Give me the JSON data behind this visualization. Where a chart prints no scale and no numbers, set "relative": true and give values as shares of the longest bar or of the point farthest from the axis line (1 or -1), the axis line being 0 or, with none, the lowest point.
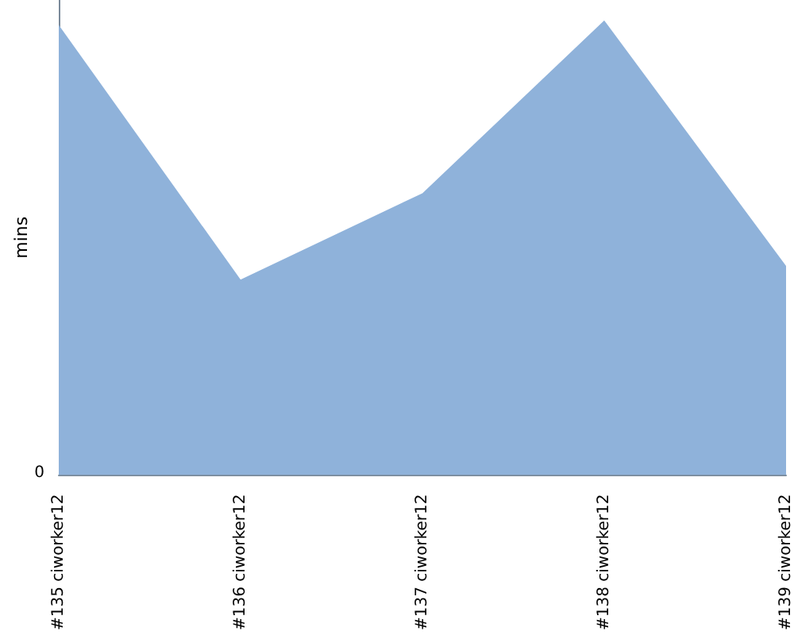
{
  "chart_data": {
    "type": "area",
    "ylabel": "mins",
    "relative": true,
    "annotations": [
      "0"
    ],
    "categories": [
      "#135 ciworker12",
      "#136 ciworker12",
      "#137 ciworker12",
      "#138 ciworker12",
      "#139 ciworker12"
    ],
    "series": [
      {
        "color": "#8fb2da",
        "values": [
          0.99,
          0.43,
          0.62,
          1,
          0.46
        ]
      }
    ],
    "grid": false
  }
}
